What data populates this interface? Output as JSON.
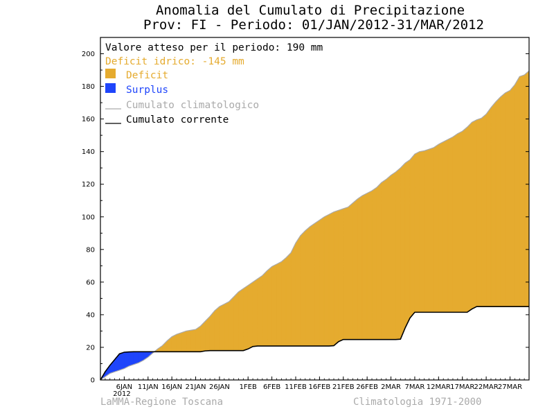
{
  "chart_data": {
    "type": "area",
    "title": "Anomalia del Cumulato di Precipitazione",
    "subtitle": "Prov: FI - Periodo: 01/JAN/2012-31/MAR/2012",
    "xlabel": "",
    "ylabel": "",
    "ylim": [
      0,
      210
    ],
    "xlim": [
      0,
      90
    ],
    "y_ticks": [
      0,
      20,
      40,
      60,
      80,
      100,
      120,
      140,
      160,
      180,
      200
    ],
    "x_ticks": [
      {
        "day": 5,
        "label": "6JAN"
      },
      {
        "day": 10,
        "label": "11JAN"
      },
      {
        "day": 15,
        "label": "16JAN"
      },
      {
        "day": 20,
        "label": "21JAN"
      },
      {
        "day": 25,
        "label": "26JAN"
      },
      {
        "day": 31,
        "label": "1FEB"
      },
      {
        "day": 36,
        "label": "6FEB"
      },
      {
        "day": 41,
        "label": "11FEB"
      },
      {
        "day": 46,
        "label": "16FEB"
      },
      {
        "day": 51,
        "label": "21FEB"
      },
      {
        "day": 56,
        "label": "26FEB"
      },
      {
        "day": 61,
        "label": "2MAR"
      },
      {
        "day": 66,
        "label": "7MAR"
      },
      {
        "day": 71,
        "label": "12MAR"
      },
      {
        "day": 76,
        "label": "17MAR"
      },
      {
        "day": 81,
        "label": "22MAR"
      },
      {
        "day": 86,
        "label": "27MAR"
      }
    ],
    "x_year_label": "2012",
    "grid": false,
    "legend_position": "top-left",
    "legend": {
      "expected_text": "Valore atteso per il periodo: 190 mm",
      "deficit_text": "Deficit idrico: -145 mm",
      "deficit_label": "Deficit",
      "surplus_label": "Surplus",
      "climatological_label": "Cumulato climatologico",
      "current_label": "Cumulato corrente"
    },
    "colors": {
      "deficit": "#e5ab2f",
      "surplus": "#1f45fb",
      "climatological": "#aaaaaa",
      "current": "#000000",
      "deficit_text": "#e5ab2f",
      "surplus_text": "#1f45fb",
      "climatological_text": "#aaaaaa"
    },
    "series": [
      {
        "name": "Cumulato climatologico",
        "x": [
          0,
          1,
          2,
          3,
          4,
          5,
          6,
          7,
          8,
          9,
          10,
          11,
          12,
          13,
          14,
          15,
          16,
          17,
          18,
          19,
          20,
          21,
          22,
          23,
          24,
          25,
          26,
          27,
          28,
          29,
          30,
          31,
          32,
          33,
          34,
          35,
          36,
          37,
          38,
          39,
          40,
          41,
          42,
          43,
          44,
          45,
          46,
          47,
          48,
          49,
          50,
          51,
          52,
          53,
          54,
          55,
          56,
          57,
          58,
          59,
          60,
          61,
          62,
          63,
          64,
          65,
          66,
          67,
          68,
          69,
          70,
          71,
          72,
          73,
          74,
          75,
          76,
          77,
          78,
          79,
          80,
          81,
          82,
          83,
          84,
          85,
          86,
          87,
          88,
          89,
          90
        ],
        "values": [
          0,
          2,
          4,
          5,
          6,
          7,
          8.5,
          9.5,
          10.5,
          12,
          14,
          16.5,
          19,
          21,
          24,
          26.5,
          28,
          29,
          30,
          30.5,
          31,
          33,
          36,
          39,
          42.5,
          45,
          46.5,
          48,
          51,
          54,
          56,
          58,
          60,
          62,
          64,
          67,
          69.5,
          71,
          72.5,
          75,
          78,
          84,
          88.5,
          91.5,
          94,
          96,
          98,
          100,
          101.5,
          103,
          104,
          105,
          106,
          108.5,
          111,
          113,
          114.5,
          116,
          118,
          121,
          123,
          125.5,
          127.5,
          130,
          133,
          135,
          138.5,
          140,
          140.5,
          141.5,
          142.5,
          144.5,
          146,
          147.5,
          149,
          151,
          152.5,
          155,
          158,
          159.5,
          160.5,
          163,
          167,
          170.5,
          173.5,
          176,
          177.5,
          181,
          186,
          187,
          189.5
        ]
      },
      {
        "name": "Cumulato corrente",
        "x": [
          0,
          1,
          2,
          3,
          4,
          5,
          6,
          7,
          8,
          9,
          10,
          11,
          12,
          13,
          14,
          15,
          16,
          17,
          18,
          19,
          20,
          21,
          22,
          23,
          24,
          25,
          26,
          27,
          28,
          29,
          30,
          31,
          32,
          33,
          34,
          35,
          36,
          37,
          38,
          39,
          40,
          41,
          42,
          43,
          44,
          45,
          46,
          47,
          48,
          49,
          50,
          51,
          52,
          53,
          54,
          55,
          56,
          57,
          58,
          59,
          60,
          61,
          62,
          63,
          64,
          65,
          66,
          67,
          68,
          69,
          70,
          71,
          72,
          73,
          74,
          75,
          76,
          77,
          78,
          79,
          80,
          81,
          82,
          83,
          84,
          85,
          86,
          87,
          88,
          89,
          90
        ],
        "values": [
          0,
          5,
          9,
          12.5,
          16,
          17,
          17.2,
          17.3,
          17.3,
          17.3,
          17.3,
          17.3,
          17.3,
          17.3,
          17.3,
          17.3,
          17.3,
          17.3,
          17.3,
          17.3,
          17.3,
          17.3,
          17.8,
          18,
          18,
          18,
          18,
          18,
          18,
          18,
          18,
          19,
          20.5,
          20.8,
          20.8,
          20.8,
          20.8,
          20.8,
          20.8,
          20.8,
          20.8,
          20.8,
          20.8,
          20.8,
          20.8,
          20.8,
          20.8,
          20.8,
          20.8,
          21,
          23.5,
          24.8,
          24.8,
          24.8,
          24.8,
          24.8,
          24.8,
          24.8,
          24.8,
          24.8,
          24.8,
          24.8,
          24.8,
          25,
          32,
          38,
          41.5,
          41.5,
          41.5,
          41.5,
          41.5,
          41.5,
          41.5,
          41.5,
          41.5,
          41.5,
          41.5,
          41.5,
          43.5,
          45,
          45,
          45,
          45,
          45,
          45,
          45,
          45,
          45,
          45,
          45,
          45
        ]
      }
    ]
  },
  "footer": {
    "left": "LaMMA-Regione Toscana",
    "right": "Climatologia 1971-2000"
  }
}
